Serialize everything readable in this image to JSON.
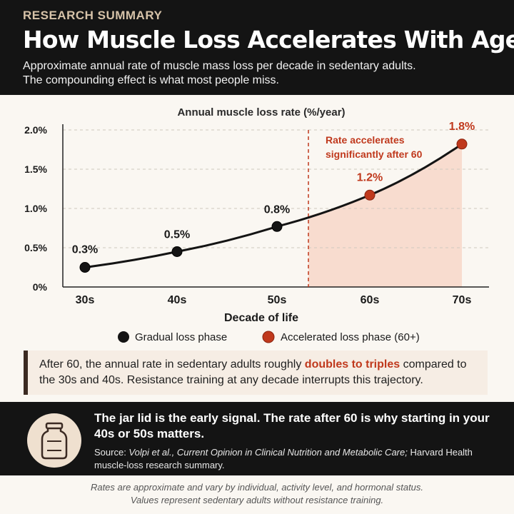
{
  "header": {
    "kicker": "RESEARCH SUMMARY",
    "title": "How Muscle Loss Accelerates With Age",
    "subtitle_line1": "Approximate annual rate of muscle mass loss per decade in sedentary adults.",
    "subtitle_line2": "The compounding effect is what most people miss."
  },
  "chart_data": {
    "type": "line",
    "title": "Annual muscle loss rate (%/year)",
    "xlabel": "Decade of life",
    "ylabel": "",
    "categories": [
      "30s",
      "40s",
      "50s",
      "60s",
      "70s"
    ],
    "values": [
      0.25,
      0.45,
      0.77,
      1.17,
      1.82
    ],
    "data_labels": [
      "0.3%",
      "0.5%",
      "0.8%",
      "1.2%",
      "1.8%"
    ],
    "phase": [
      "gradual",
      "gradual",
      "gradual",
      "accelerated",
      "accelerated"
    ],
    "y_ticks": [
      0,
      0.5,
      1.0,
      1.5,
      2.0
    ],
    "y_tick_labels": [
      "0%",
      "0.5%",
      "1.0%",
      "1.5%",
      "2.0%"
    ],
    "ylim": [
      0,
      2.0
    ],
    "grid": true,
    "threshold_x_between": [
      "50s",
      "60s"
    ],
    "annotation": [
      "Rate accelerates",
      "significantly after 60"
    ],
    "legend": [
      {
        "label": "Gradual loss phase",
        "color": "#141414"
      },
      {
        "label": "Accelerated loss phase (60+)",
        "color": "#c0391d"
      }
    ],
    "legend_position": "bottom",
    "colors": {
      "gradual": "#141414",
      "accelerated": "#c0391d",
      "shade": "#f8dccf"
    }
  },
  "callout": {
    "text_before": "After 60, the annual rate in sedentary adults roughly ",
    "highlight": "doubles to triples",
    "text_after": " compared to the 30s and 40s. Resistance training at any decade interrupts this trajectory."
  },
  "band": {
    "icon": "jar-icon",
    "headline": "The jar lid is the early signal. The rate after 60 is why starting in your 40s or 50s matters.",
    "source_prefix": "Source: ",
    "source_italic": "Volpi et al., Current Opinion in Clinical Nutrition and Metabolic Care;",
    "source_rest": " Harvard Health muscle-loss research summary."
  },
  "footer": {
    "line1": "Rates are approximate and vary by individual, activity level, and hormonal status.",
    "line2": "Values represent sedentary adults without resistance training."
  }
}
